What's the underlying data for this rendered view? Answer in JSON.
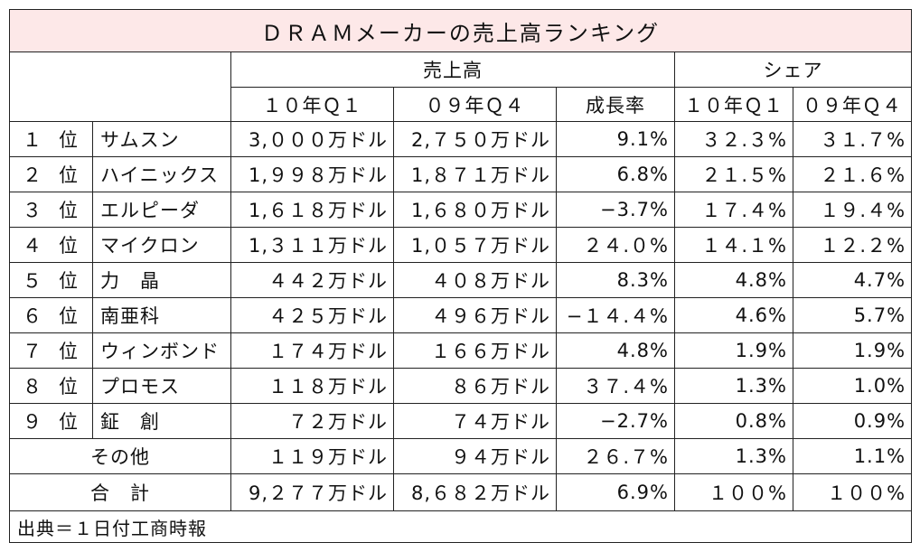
{
  "title": "ＤＲＡＭメーカーの売上高ランキング",
  "headers": {
    "group_sales": "売上高",
    "group_share": "シェア",
    "col_sales_10q1": "１０年Ｑ１",
    "col_sales_09q4": "０９年Ｑ４",
    "col_growth": "成長率",
    "col_share_10q1": "１０年Ｑ１",
    "col_share_09q4": "０９年Ｑ４"
  },
  "rank_suffix": "位",
  "rows": [
    {
      "rank": "１",
      "name": "サムスン",
      "s10q1": "3,０００万ドル",
      "s09q4": "2,７５０万ドル",
      "growth": "9.1%",
      "sh10q1": "３２.３%",
      "sh09q4": "３１.７%"
    },
    {
      "rank": "２",
      "name": "ハイニックス",
      "s10q1": "1,９９８万ドル",
      "s09q4": "1,８７１万ドル",
      "growth": "6.8%",
      "sh10q1": "２１.５%",
      "sh09q4": "２１.６%"
    },
    {
      "rank": "３",
      "name": "エルピーダ",
      "s10q1": "1,６１８万ドル",
      "s09q4": "1,６８０万ドル",
      "growth": "−3.7%",
      "sh10q1": "１７.４%",
      "sh09q4": "１９.４%"
    },
    {
      "rank": "４",
      "name": "マイクロン",
      "s10q1": "1,３１１万ドル",
      "s09q4": "1,０５７万ドル",
      "growth": "２４.０%",
      "sh10q1": "１４.１%",
      "sh09q4": "１２.２%"
    },
    {
      "rank": "５",
      "name": "力　晶",
      "s10q1": "４４２万ドル",
      "s09q4": "４０８万ドル",
      "growth": "8.3%",
      "sh10q1": "4.8%",
      "sh09q4": "4.7%"
    },
    {
      "rank": "６",
      "name": "南亜科",
      "s10q1": "４２５万ドル",
      "s09q4": "４９６万ドル",
      "growth": "−１４.４%",
      "sh10q1": "4.6%",
      "sh09q4": "5.7%"
    },
    {
      "rank": "７",
      "name": "ウィンボンド",
      "s10q1": "１７４万ドル",
      "s09q4": "１６６万ドル",
      "growth": "4.8%",
      "sh10q1": "1.9%",
      "sh09q4": "1.9%"
    },
    {
      "rank": "８",
      "name": "プロモス",
      "s10q1": "１１８万ドル",
      "s09q4": "８６万ドル",
      "growth": "３７.４%",
      "sh10q1": "1.3%",
      "sh09q4": "1.0%"
    },
    {
      "rank": "９",
      "name": "鉦　創",
      "s10q1": "７２万ドル",
      "s09q4": "７４万ドル",
      "growth": "−2.7%",
      "sh10q1": "0.8%",
      "sh09q4": "0.9%"
    }
  ],
  "other": {
    "label": "その他",
    "s10q1": "１１９万ドル",
    "s09q4": "９４万ドル",
    "growth": "２６.７%",
    "sh10q1": "1.3%",
    "sh09q4": "1.1%"
  },
  "total": {
    "label": "合　計",
    "s10q1": "9,２７７万ドル",
    "s09q4": "8,６８２万ドル",
    "growth": "6.9%",
    "sh10q1": "１００%",
    "sh09q4": "１００%"
  },
  "source": "出典＝１日付工商時報"
}
